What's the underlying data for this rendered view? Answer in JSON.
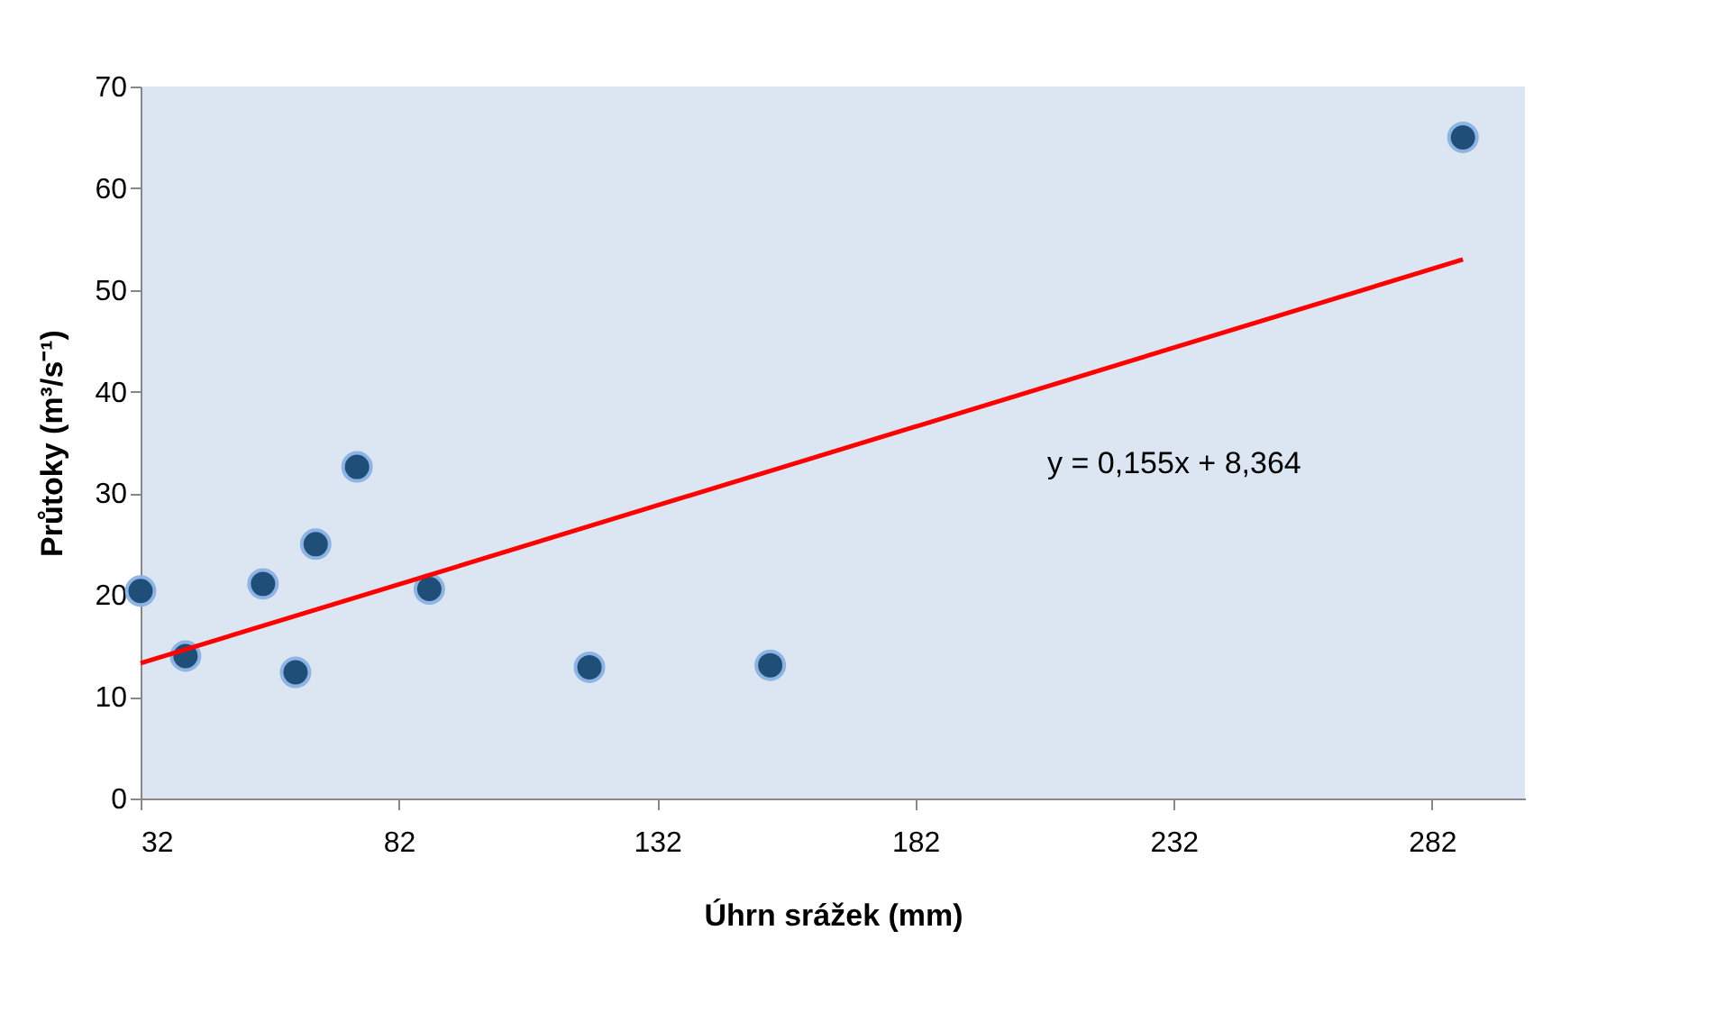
{
  "chart_data": {
    "type": "scatter",
    "xlabel": "Úhrn srážek (mm)",
    "ylabel": "Průtoky (m³/s⁻¹)",
    "xlim": [
      32,
      300
    ],
    "xticks": [
      32,
      82,
      132,
      182,
      232,
      282
    ],
    "ylim": [
      0,
      70
    ],
    "yticks": [
      0,
      10,
      20,
      30,
      40,
      50,
      60,
      70
    ],
    "grid": false,
    "annotations": [
      "y = 0,155x + 8,364"
    ],
    "series": [
      {
        "color": "#1f4e79",
        "marker": "circle",
        "x": [
          32,
          40.7,
          55.7,
          62,
          65.9,
          73.9,
          87.9,
          118.9,
          153.9,
          288
        ],
        "values": [
          20.4,
          14.0,
          21.1,
          12.4,
          25.0,
          32.6,
          20.6,
          12.9,
          13.1,
          65.0
        ]
      },
      {
        "type": "line",
        "color": "#ff0000",
        "line_style": "solid",
        "marker": "none",
        "x": [
          32,
          288
        ],
        "values": [
          13.3,
          53.0
        ]
      }
    ]
  }
}
